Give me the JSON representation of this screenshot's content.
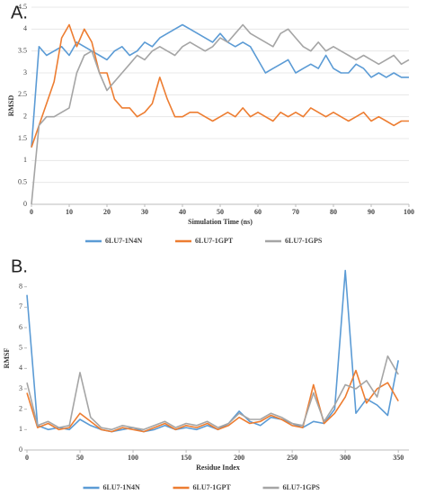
{
  "chart_data": [
    {
      "type": "line",
      "label": "A.",
      "x_label": "Simulation Time (ns)",
      "y_label": "RMSD",
      "x": [
        0,
        2,
        4,
        6,
        8,
        10,
        12,
        14,
        16,
        18,
        20,
        22,
        24,
        26,
        28,
        30,
        32,
        34,
        36,
        38,
        40,
        42,
        44,
        46,
        48,
        50,
        52,
        54,
        56,
        58,
        60,
        62,
        64,
        66,
        68,
        70,
        72,
        74,
        76,
        78,
        80,
        82,
        84,
        86,
        88,
        90,
        92,
        94,
        96,
        98,
        100
      ],
      "series": [
        {
          "name": "6LU7-1N4N",
          "color": "#5b9bd5",
          "values": [
            1.3,
            3.6,
            3.4,
            3.5,
            3.6,
            3.4,
            3.7,
            3.6,
            3.5,
            3.4,
            3.3,
            3.5,
            3.6,
            3.4,
            3.5,
            3.7,
            3.6,
            3.8,
            3.9,
            4.0,
            4.1,
            4.0,
            3.9,
            3.8,
            3.7,
            3.9,
            3.7,
            3.6,
            3.7,
            3.6,
            3.3,
            3.0,
            3.1,
            3.2,
            3.3,
            3.0,
            3.1,
            3.2,
            3.1,
            3.4,
            3.1,
            3.0,
            3.0,
            3.2,
            3.1,
            2.9,
            3.0,
            2.9,
            3.0,
            2.9,
            2.9
          ]
        },
        {
          "name": "6LU7-1GPT",
          "color": "#ed7d31",
          "values": [
            1.3,
            1.8,
            2.3,
            2.8,
            3.8,
            4.1,
            3.6,
            4.0,
            3.7,
            3.0,
            3.0,
            2.4,
            2.2,
            2.2,
            2.0,
            2.1,
            2.3,
            2.9,
            2.4,
            2.0,
            2.0,
            2.1,
            2.1,
            2.0,
            1.9,
            2.0,
            2.1,
            2.0,
            2.2,
            2.0,
            2.1,
            2.0,
            1.9,
            2.1,
            2.0,
            2.1,
            2.0,
            2.2,
            2.1,
            2.0,
            2.1,
            2.0,
            1.9,
            2.0,
            2.1,
            1.9,
            2.0,
            1.9,
            1.8,
            1.9,
            1.9
          ]
        },
        {
          "name": "6LU7-1GPS",
          "color": "#a5a5a5",
          "values": [
            0,
            1.8,
            2.0,
            2.0,
            2.1,
            2.2,
            3.0,
            3.4,
            3.5,
            3.0,
            2.6,
            2.8,
            3.0,
            3.2,
            3.4,
            3.3,
            3.5,
            3.6,
            3.5,
            3.4,
            3.6,
            3.7,
            3.6,
            3.5,
            3.6,
            3.8,
            3.7,
            3.9,
            4.1,
            3.9,
            3.8,
            3.7,
            3.6,
            3.9,
            4.0,
            3.8,
            3.6,
            3.5,
            3.7,
            3.5,
            3.6,
            3.5,
            3.4,
            3.3,
            3.4,
            3.3,
            3.2,
            3.3,
            3.4,
            3.2,
            3.3
          ]
        }
      ],
      "xlim": [
        0,
        100
      ],
      "xticks": [
        0,
        10,
        20,
        30,
        40,
        50,
        60,
        70,
        80,
        90,
        100
      ],
      "ylim": [
        0,
        4.5
      ],
      "yticks": [
        0,
        0.5,
        1,
        1.5,
        2,
        2.5,
        3,
        3.5,
        4,
        4.5
      ],
      "grid": true,
      "legend": "bottom"
    },
    {
      "type": "line",
      "label": "B.",
      "x_label": "Residue Index",
      "y_label": "RMSF",
      "x": [
        0,
        10,
        20,
        30,
        40,
        50,
        60,
        70,
        80,
        90,
        100,
        110,
        120,
        130,
        140,
        150,
        160,
        170,
        180,
        190,
        200,
        210,
        220,
        230,
        240,
        250,
        260,
        270,
        280,
        290,
        300,
        310,
        320,
        330,
        340,
        350
      ],
      "series": [
        {
          "name": "6LU7-1N4N",
          "color": "#5b9bd5",
          "values": [
            7.6,
            1.2,
            1.0,
            1.1,
            1.0,
            1.5,
            1.2,
            1.0,
            0.9,
            1.0,
            1.1,
            0.9,
            1.0,
            1.2,
            1.0,
            1.1,
            1.0,
            1.2,
            1.0,
            1.3,
            1.9,
            1.4,
            1.2,
            1.6,
            1.5,
            1.3,
            1.1,
            1.4,
            1.3,
            2.0,
            8.8,
            1.8,
            2.5,
            2.2,
            1.7,
            4.4
          ]
        },
        {
          "name": "6LU7-1GPT",
          "color": "#ed7d31",
          "values": [
            2.8,
            1.1,
            1.3,
            1.0,
            1.1,
            1.8,
            1.4,
            1.0,
            0.9,
            1.1,
            1.0,
            0.9,
            1.1,
            1.3,
            1.0,
            1.2,
            1.1,
            1.3,
            1.0,
            1.2,
            1.6,
            1.3,
            1.4,
            1.7,
            1.5,
            1.2,
            1.1,
            3.2,
            1.3,
            1.8,
            2.6,
            3.9,
            2.3,
            3.0,
            3.3,
            2.4
          ]
        },
        {
          "name": "6LU7-1GPS",
          "color": "#a5a5a5",
          "values": [
            3.3,
            1.2,
            1.4,
            1.1,
            1.2,
            3.8,
            1.6,
            1.1,
            1.0,
            1.2,
            1.1,
            1.0,
            1.2,
            1.4,
            1.1,
            1.3,
            1.2,
            1.4,
            1.1,
            1.3,
            1.8,
            1.5,
            1.5,
            1.8,
            1.6,
            1.3,
            1.2,
            2.8,
            1.4,
            2.2,
            3.2,
            3.0,
            3.4,
            2.6,
            4.6,
            3.7
          ]
        }
      ],
      "xlim": [
        0,
        360
      ],
      "xticks": [
        0,
        50,
        100,
        150,
        200,
        250,
        300,
        350
      ],
      "ylim": [
        0,
        9
      ],
      "yticks": [
        0,
        1,
        2,
        3,
        4,
        5,
        6,
        7,
        8
      ],
      "grid": false,
      "legend": "bottom"
    }
  ]
}
